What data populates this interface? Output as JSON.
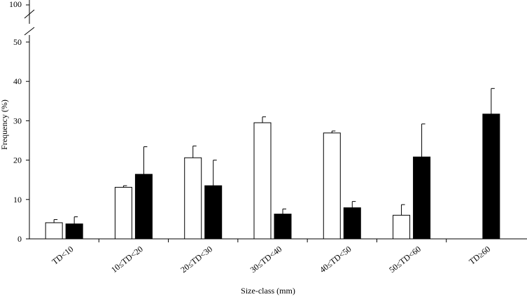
{
  "chart_data": {
    "type": "bar",
    "title": "",
    "xlabel": "Size-class (mm)",
    "ylabel": "Frequency (%)",
    "ylim": [
      0,
      50
    ],
    "broken_axis_top_label": "100",
    "yticks": [
      0,
      10,
      20,
      30,
      40,
      50
    ],
    "grid": false,
    "legend": "none",
    "categories": [
      "TD<10",
      "10≤TD<20",
      "20≤TD<30",
      "30≤TD<40",
      "40≤TD<50",
      "50≤TD<60",
      "TD≥60"
    ],
    "series": [
      {
        "fill": "#ffffff",
        "values": [
          4.1,
          13.1,
          20.6,
          29.5,
          26.9,
          6.0,
          null
        ],
        "errors": [
          0.8,
          0.4,
          3.0,
          1.5,
          0.5,
          2.7,
          null
        ]
      },
      {
        "fill": "#000000",
        "values": [
          3.8,
          16.4,
          13.5,
          6.3,
          7.9,
          20.8,
          31.7
        ],
        "errors": [
          1.8,
          7.0,
          6.5,
          1.3,
          1.6,
          8.4,
          6.5
        ]
      }
    ]
  }
}
